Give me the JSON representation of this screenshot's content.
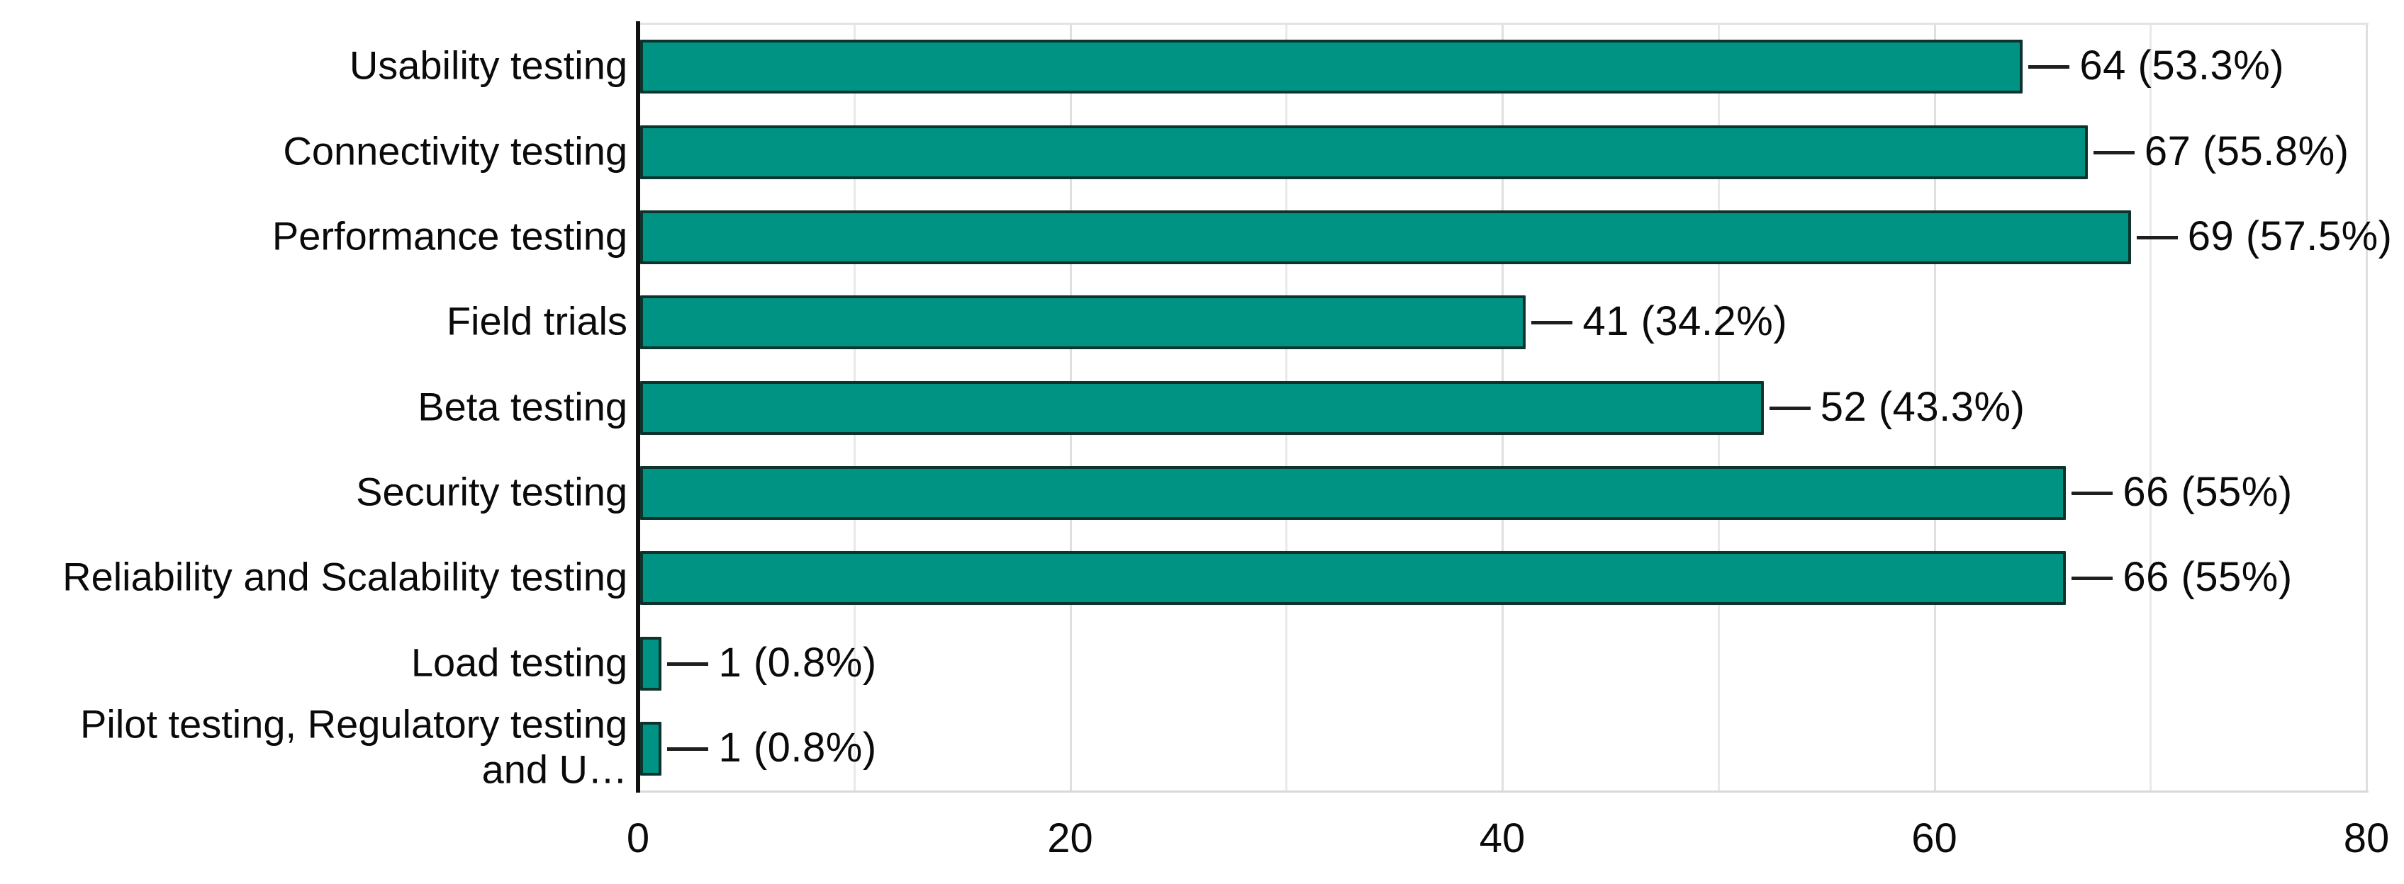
{
  "chart_data": {
    "type": "bar",
    "orientation": "horizontal",
    "title": "",
    "xlabel": "",
    "ylabel": "",
    "categories": [
      "Usability testing",
      "Connectivity testing",
      "Performance testing",
      "Field trials",
      "Beta testing",
      "Security testing",
      "Reliability and Scalability testing",
      "Load testing",
      "Pilot testing, Regulatory testing and U…"
    ],
    "category_lines": [
      [
        "Usability testing"
      ],
      [
        "Connectivity testing"
      ],
      [
        "Performance testing"
      ],
      [
        "Field trials"
      ],
      [
        "Beta testing"
      ],
      [
        "Security testing"
      ],
      [
        "Reliability and Scalability testing"
      ],
      [
        "Load testing"
      ],
      [
        "Pilot testing, Regulatory testing",
        "and U…"
      ]
    ],
    "values": [
      64,
      67,
      69,
      41,
      52,
      66,
      66,
      1,
      1
    ],
    "value_labels": [
      "64 (53.3%)",
      "67 (55.8%)",
      "69 (57.5%)",
      "41 (34.2%)",
      "52 (43.3%)",
      "66 (55%)",
      "66 (55%)",
      "1 (0.8%)",
      "1 (0.8%)"
    ],
    "xlim": [
      0,
      80
    ],
    "xticks": [
      0,
      20,
      40,
      60,
      80
    ],
    "xtick_labels": [
      "0",
      "20",
      "40",
      "60",
      "80"
    ],
    "minor_grid_step": 10,
    "grid": true,
    "legend": false,
    "colors": {
      "bar_fill": "#009384",
      "bar_border": "#0e332d",
      "axis": "#111111",
      "grid_minor": "#e9e9e9",
      "grid_major": "#dfdfdf",
      "text": "#0a0a0a",
      "background": "#ffffff"
    }
  }
}
